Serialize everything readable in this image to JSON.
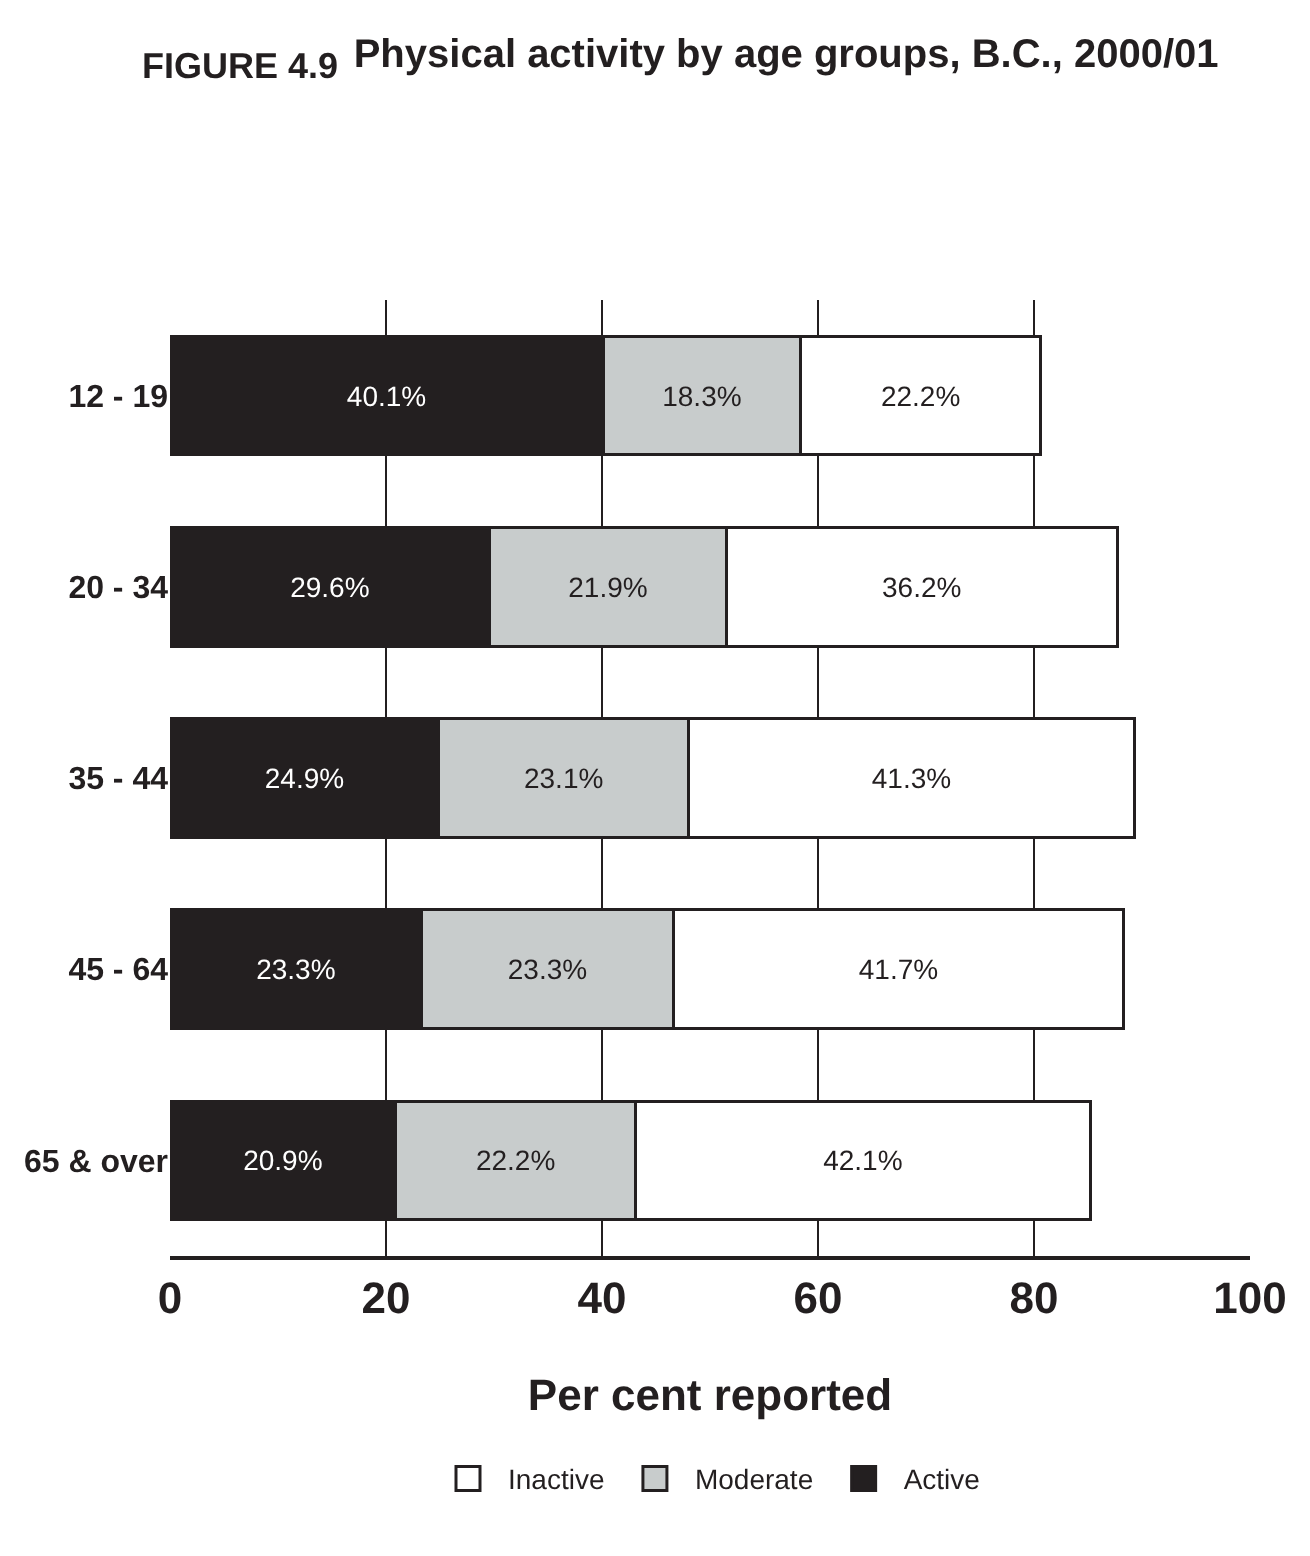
{
  "chart_data": {
    "type": "bar",
    "orientation": "horizontal",
    "stacked": true,
    "title": "Physical activity by age groups, B.C., 2000/01",
    "xlabel": "Per cent reported",
    "annotations": [
      "FIGURE 4.9"
    ],
    "categories": [
      "12 - 19",
      "20 - 34",
      "35 - 44",
      "45 - 64",
      "65 & over"
    ],
    "series": [
      {
        "name": "Active",
        "color": "#231f20",
        "values": [
          40.1,
          29.6,
          24.9,
          23.3,
          20.9
        ],
        "value_labels": [
          "40.1%",
          "29.6%",
          "24.9%",
          "23.3%",
          "20.9%"
        ]
      },
      {
        "name": "Moderate",
        "color": "#c8cccc",
        "values": [
          18.3,
          21.9,
          23.1,
          23.3,
          22.2
        ],
        "value_labels": [
          "18.3%",
          "21.9%",
          "23.1%",
          "23.3%",
          "22.2%"
        ]
      },
      {
        "name": "Inactive",
        "color": "#ffffff",
        "values": [
          22.2,
          36.2,
          41.3,
          41.7,
          42.1
        ],
        "value_labels": [
          "22.2%",
          "36.2%",
          "41.3%",
          "41.7%",
          "42.1%"
        ]
      }
    ],
    "xlim": [
      0,
      100
    ],
    "xticks": [
      0,
      20,
      40,
      60,
      80,
      100
    ],
    "grid": "x",
    "legend": "bottom"
  }
}
